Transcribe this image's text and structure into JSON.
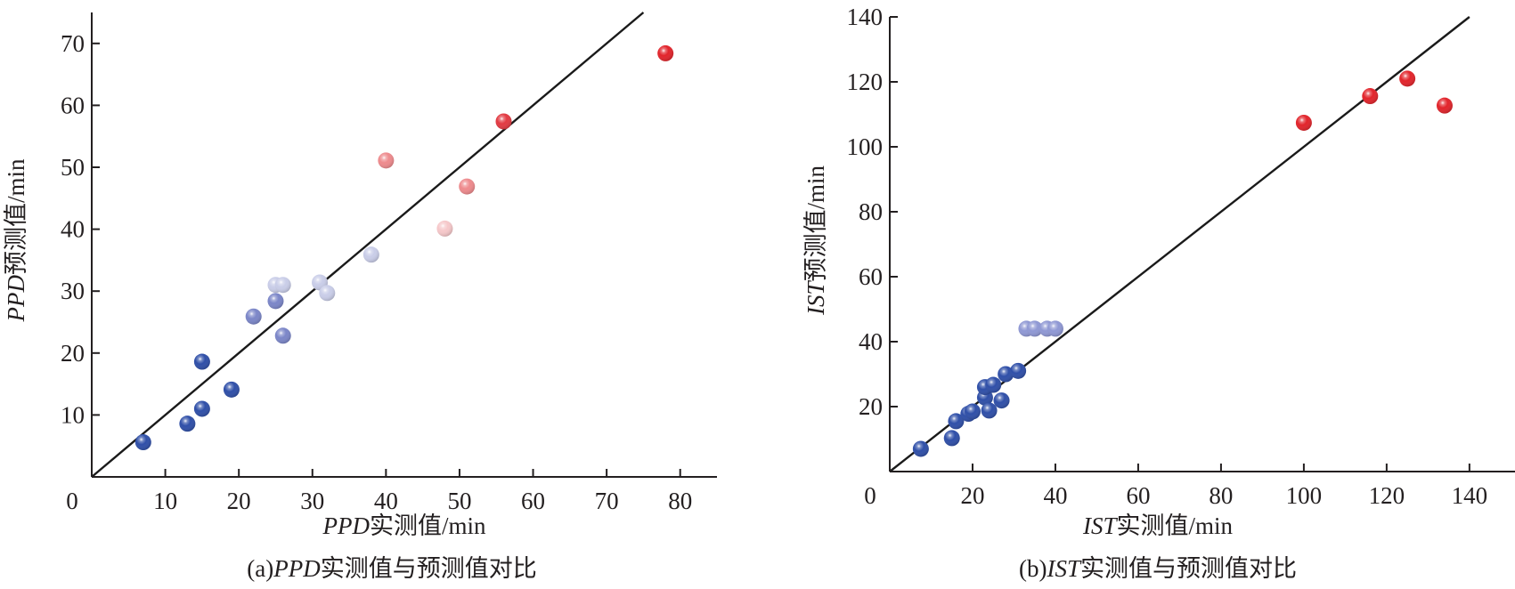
{
  "chart_data": [
    {
      "type": "scatter",
      "id": "a",
      "caption_prefix": "(a)",
      "caption_var": "PPD",
      "caption_rest": "实测值与预测值对比",
      "xlabel_var": "PPD",
      "xlabel_rest": "实测值/min",
      "ylabel_var": "PPD",
      "ylabel_rest": "预测值/min",
      "xlim": [
        0,
        85
      ],
      "ylim": [
        0,
        75
      ],
      "xticks": [
        0,
        10,
        20,
        30,
        40,
        50,
        60,
        70,
        80
      ],
      "yticks": [
        10,
        20,
        30,
        40,
        50,
        60,
        70
      ],
      "x_tick_labels": [
        "0",
        "10",
        "20",
        "30",
        "40",
        "50",
        "60",
        "70",
        "80"
      ],
      "y_tick_labels": [
        "10",
        "20",
        "30",
        "40",
        "50",
        "60",
        "70"
      ],
      "reference_line": "y = x",
      "grid": false,
      "points": [
        {
          "x": 7,
          "y": 5.6,
          "color": "#2f4fa8"
        },
        {
          "x": 13,
          "y": 8.6,
          "color": "#2f4fa8"
        },
        {
          "x": 15,
          "y": 11,
          "color": "#2f4fa8"
        },
        {
          "x": 15,
          "y": 18.6,
          "color": "#2f4fa8"
        },
        {
          "x": 19,
          "y": 14.1,
          "color": "#2f4fa8"
        },
        {
          "x": 22,
          "y": 25.9,
          "color": "#7b86c8"
        },
        {
          "x": 25,
          "y": 28.4,
          "color": "#7b86c8"
        },
        {
          "x": 26,
          "y": 22.8,
          "color": "#7b86c8"
        },
        {
          "x": 25,
          "y": 31,
          "color": "#c9cde8"
        },
        {
          "x": 26,
          "y": 31,
          "color": "#c9cde8"
        },
        {
          "x": 31,
          "y": 31.4,
          "color": "#c9cde8"
        },
        {
          "x": 32,
          "y": 29.7,
          "color": "#c9cde8"
        },
        {
          "x": 38,
          "y": 35.9,
          "color": "#c9cde8"
        },
        {
          "x": 40,
          "y": 51.1,
          "color": "#ee8a8d"
        },
        {
          "x": 48,
          "y": 40.1,
          "color": "#f6c8ca"
        },
        {
          "x": 51,
          "y": 46.9,
          "color": "#ee8a8d"
        },
        {
          "x": 56,
          "y": 57.4,
          "color": "#e23a42"
        },
        {
          "x": 78,
          "y": 68.4,
          "color": "#e2242b"
        }
      ]
    },
    {
      "type": "scatter",
      "id": "b",
      "caption_prefix": "(b)",
      "caption_var": "IST",
      "caption_rest": "实测值与预测值对比",
      "xlabel_var": "IST",
      "xlabel_rest": "实测值/min",
      "ylabel_var": "IST",
      "ylabel_rest": "预测值/min",
      "xlim": [
        0,
        151
      ],
      "ylim": [
        0,
        140
      ],
      "xticks": [
        0,
        20,
        40,
        60,
        80,
        100,
        120,
        140
      ],
      "yticks": [
        20,
        40,
        60,
        80,
        100,
        120,
        140
      ],
      "x_tick_labels": [
        "0",
        "20",
        "40",
        "60",
        "80",
        "100",
        "120",
        "140"
      ],
      "y_tick_labels": [
        "20",
        "40",
        "60",
        "80",
        "100",
        "120",
        "140"
      ],
      "reference_line": "y = x",
      "grid": false,
      "points": [
        {
          "x": 7.5,
          "y": 7,
          "color": "#2f4fa8"
        },
        {
          "x": 15,
          "y": 10.3,
          "color": "#2f4fa8"
        },
        {
          "x": 16,
          "y": 15.5,
          "color": "#2f4fa8"
        },
        {
          "x": 19,
          "y": 17.8,
          "color": "#2f4fa8"
        },
        {
          "x": 20,
          "y": 18.5,
          "color": "#2f4fa8"
        },
        {
          "x": 23,
          "y": 22.8,
          "color": "#2f4fa8"
        },
        {
          "x": 23,
          "y": 26,
          "color": "#2f4fa8"
        },
        {
          "x": 24,
          "y": 18.8,
          "color": "#2f4fa8"
        },
        {
          "x": 25,
          "y": 26.7,
          "color": "#2f4fa8"
        },
        {
          "x": 27,
          "y": 21.9,
          "color": "#2f4fa8"
        },
        {
          "x": 28,
          "y": 30,
          "color": "#2f4fa8"
        },
        {
          "x": 31,
          "y": 31,
          "color": "#2f4fa8"
        },
        {
          "x": 33,
          "y": 44,
          "color": "#8f98d4"
        },
        {
          "x": 35,
          "y": 44,
          "color": "#8f98d4"
        },
        {
          "x": 38,
          "y": 44,
          "color": "#8f98d4"
        },
        {
          "x": 40,
          "y": 44,
          "color": "#8f98d4"
        },
        {
          "x": 100,
          "y": 107.4,
          "color": "#e2242b"
        },
        {
          "x": 116,
          "y": 115.6,
          "color": "#e2242b"
        },
        {
          "x": 125,
          "y": 121,
          "color": "#e2242b"
        },
        {
          "x": 134,
          "y": 112.7,
          "color": "#e2242b"
        }
      ]
    }
  ]
}
